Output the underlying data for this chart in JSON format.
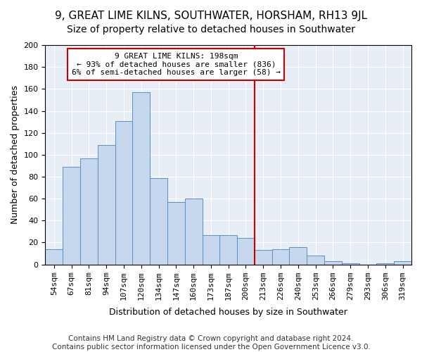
{
  "title": "9, GREAT LIME KILNS, SOUTHWATER, HORSHAM, RH13 9JL",
  "subtitle": "Size of property relative to detached houses in Southwater",
  "xlabel": "Distribution of detached houses by size in Southwater",
  "ylabel": "Number of detached properties",
  "categories": [
    "54sqm",
    "67sqm",
    "81sqm",
    "94sqm",
    "107sqm",
    "120sqm",
    "134sqm",
    "147sqm",
    "160sqm",
    "173sqm",
    "187sqm",
    "200sqm",
    "213sqm",
    "226sqm",
    "240sqm",
    "253sqm",
    "266sqm",
    "279sqm",
    "293sqm",
    "306sqm",
    "319sqm"
  ],
  "values": [
    14,
    89,
    97,
    109,
    131,
    157,
    79,
    57,
    60,
    27,
    27,
    24,
    13,
    14,
    16,
    8,
    3,
    1,
    0,
    1,
    3
  ],
  "bar_color": "#c5d8ed",
  "bar_edge_color": "#5a8fc2",
  "annotation_line1": "9 GREAT LIME KILNS: 198sqm",
  "annotation_line2": "← 93% of detached houses are smaller (836)",
  "annotation_line3": "6% of semi-detached houses are larger (58) →",
  "annotation_box_color": "#ffffff",
  "annotation_box_edge": "#cc0000",
  "vline_color": "#cc0000",
  "vline_x": 11.5,
  "ylim": [
    0,
    200
  ],
  "yticks": [
    0,
    20,
    40,
    60,
    80,
    100,
    120,
    140,
    160,
    180,
    200
  ],
  "background_color": "#e8eef5",
  "footer_line1": "Contains HM Land Registry data © Crown copyright and database right 2024.",
  "footer_line2": "Contains public sector information licensed under the Open Government Licence v3.0.",
  "title_fontsize": 11,
  "subtitle_fontsize": 10,
  "xlabel_fontsize": 9,
  "ylabel_fontsize": 9,
  "tick_fontsize": 8,
  "footer_fontsize": 7.5
}
